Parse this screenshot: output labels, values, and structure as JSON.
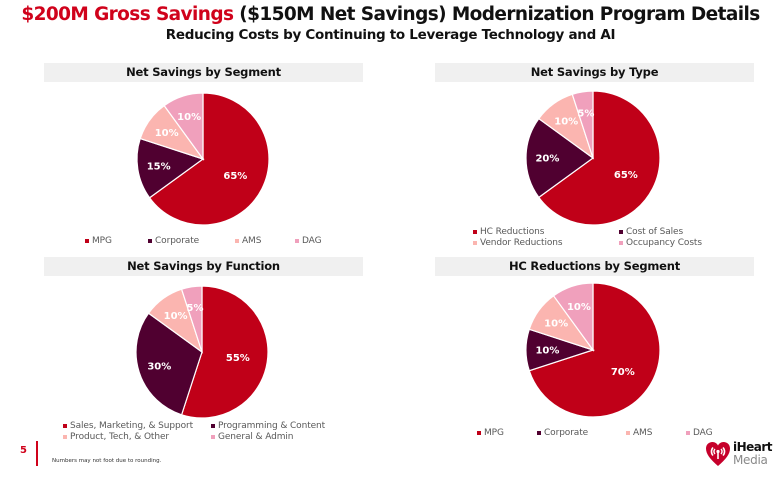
{
  "header": {
    "title_accent": "$200M Gross Savings",
    "title_rest": " ($150M Net Savings) Modernization Program Details",
    "subtitle": "Reducing Costs by Continuing to Leverage Technology and AI"
  },
  "colors": {
    "accent": "#D0021B",
    "slice1": "#C00018",
    "slice2": "#500030",
    "slice3": "#FBB5B0",
    "slice4": "#F0A0BC"
  },
  "chart_data": [
    {
      "type": "pie",
      "title": "Net Savings by Segment",
      "categories": [
        "MPG",
        "Corporate",
        "AMS",
        "DAG"
      ],
      "values": [
        65,
        15,
        10,
        10
      ],
      "labels": [
        "65%",
        "15%",
        "10%",
        "10%"
      ],
      "legend": "bottom"
    },
    {
      "type": "pie",
      "title": "Net Savings by Type",
      "categories": [
        "HC Reductions",
        "Cost of Sales",
        "Vendor Reductions",
        "Occupancy Costs"
      ],
      "values": [
        65,
        20,
        10,
        5
      ],
      "labels": [
        "65%",
        "20%",
        "10%",
        "5%"
      ],
      "legend": "bottom"
    },
    {
      "type": "pie",
      "title": "Net Savings by Function",
      "categories": [
        "Sales, Marketing, & Support",
        "Programming & Content",
        "Product, Tech, & Other",
        "General & Admin"
      ],
      "values": [
        55,
        30,
        10,
        5
      ],
      "labels": [
        "55%",
        "30%",
        "10%",
        "5%"
      ],
      "legend": "bottom"
    },
    {
      "type": "pie",
      "title": "HC Reductions by Segment",
      "categories": [
        "MPG",
        "Corporate",
        "AMS",
        "DAG"
      ],
      "values": [
        70,
        10,
        10,
        10
      ],
      "labels": [
        "70%",
        "10%",
        "10%",
        "10%"
      ],
      "legend": "bottom"
    }
  ],
  "footer": {
    "page_number": "5",
    "footnote": "Numbers may not foot due to rounding.",
    "logo_line1": "iHeart",
    "logo_line2": "Media"
  }
}
